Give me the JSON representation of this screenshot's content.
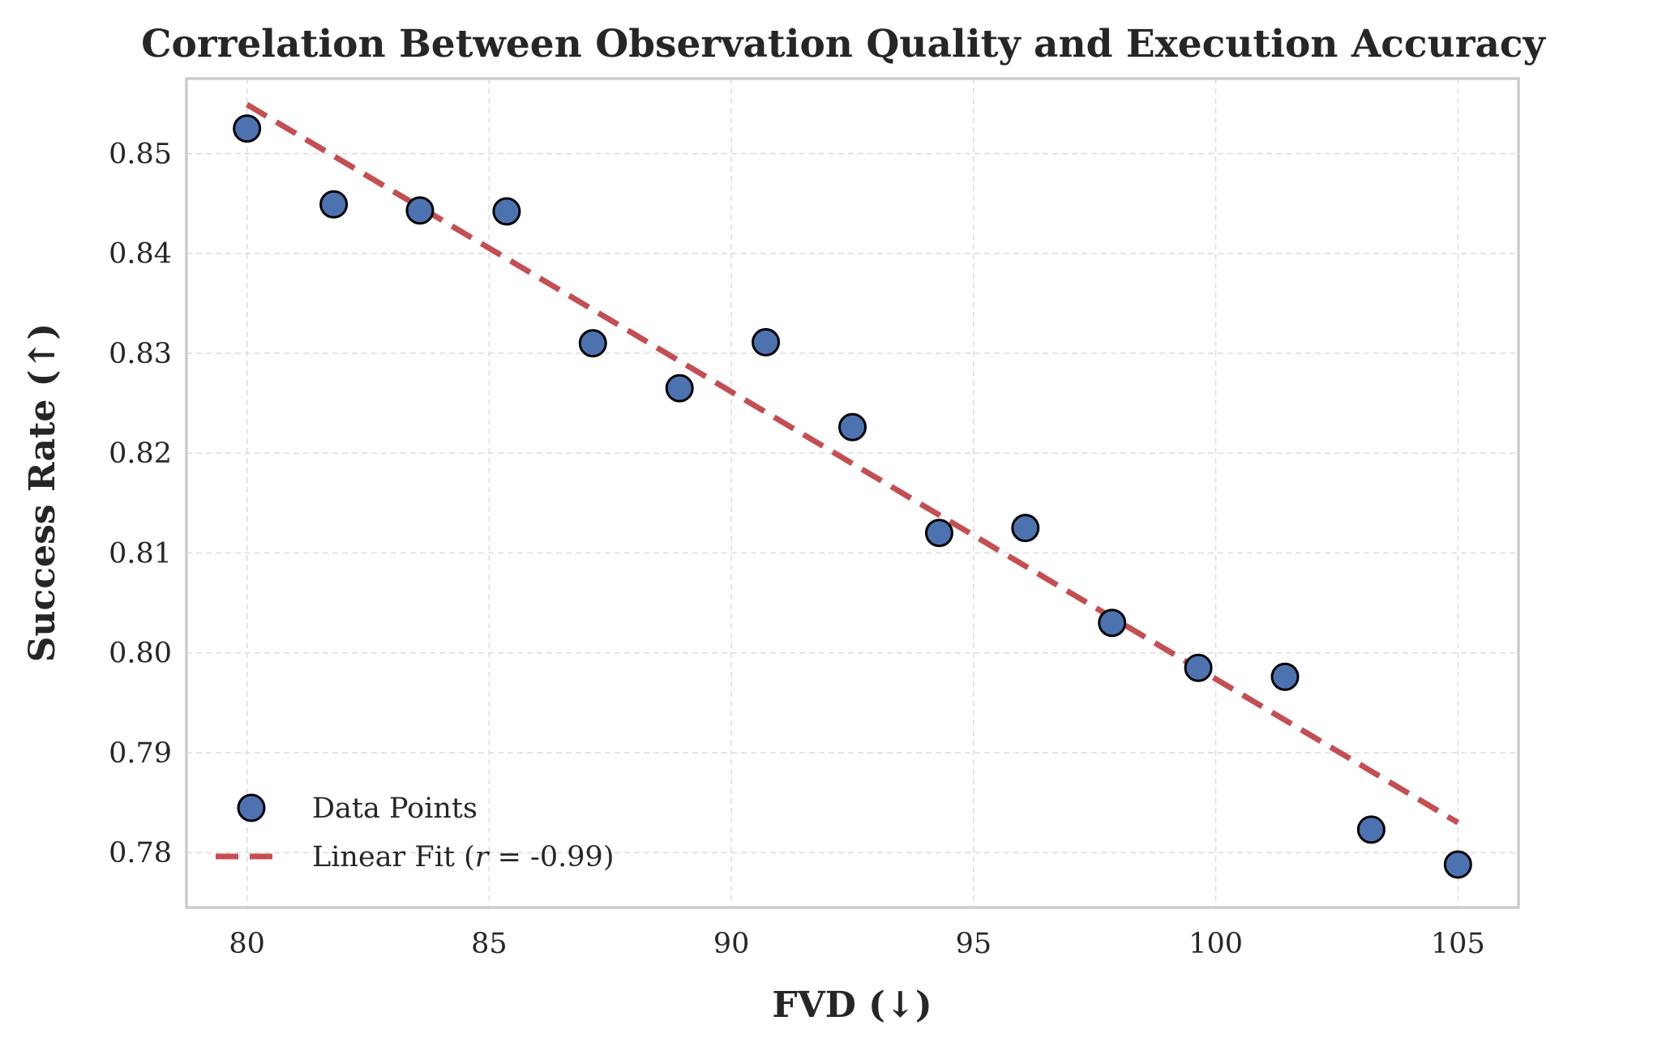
{
  "chart_data": {
    "type": "scatter",
    "title": "Correlation Between Observation Quality and Execution Accuracy",
    "xlabel": "FVD (↓)",
    "ylabel": "Success Rate (↑)",
    "xlim": [
      78.75,
      106.25
    ],
    "ylim": [
      0.7745,
      0.8575
    ],
    "x_ticks": [
      80,
      85,
      90,
      95,
      100,
      105
    ],
    "y_ticks": [
      0.78,
      0.79,
      0.8,
      0.81,
      0.82,
      0.83,
      0.84,
      0.85
    ],
    "x_tick_labels": [
      "80",
      "85",
      "90",
      "95",
      "100",
      "105"
    ],
    "y_tick_labels": [
      "0.78",
      "0.79",
      "0.80",
      "0.81",
      "0.82",
      "0.83",
      "0.84",
      "0.85"
    ],
    "grid": true,
    "legend_position": "lower-left",
    "series": [
      {
        "name": "Data Points",
        "kind": "scatter",
        "color": "#4c72b0",
        "edge_color": "#000000",
        "x": [
          80.0,
          81.79,
          83.57,
          85.36,
          87.14,
          88.93,
          90.71,
          92.5,
          94.29,
          96.07,
          97.86,
          99.64,
          101.43,
          103.21,
          105.0
        ],
        "y": [
          0.8525,
          0.8449,
          0.8443,
          0.8442,
          0.831,
          0.8265,
          0.8311,
          0.8226,
          0.812,
          0.8125,
          0.803,
          0.7985,
          0.7976,
          0.7823,
          0.7788
        ]
      },
      {
        "name": "Linear Fit",
        "kind": "line",
        "style": "dashed",
        "color": "#c44e52",
        "x": [
          80.0,
          105.0
        ],
        "y": [
          0.8549,
          0.783
        ]
      }
    ],
    "legend": {
      "scatter_label": "Data Points",
      "line_label_prefix": "Linear Fit (",
      "line_label_var": "r",
      "line_label_suffix": " = -0.99)"
    }
  }
}
